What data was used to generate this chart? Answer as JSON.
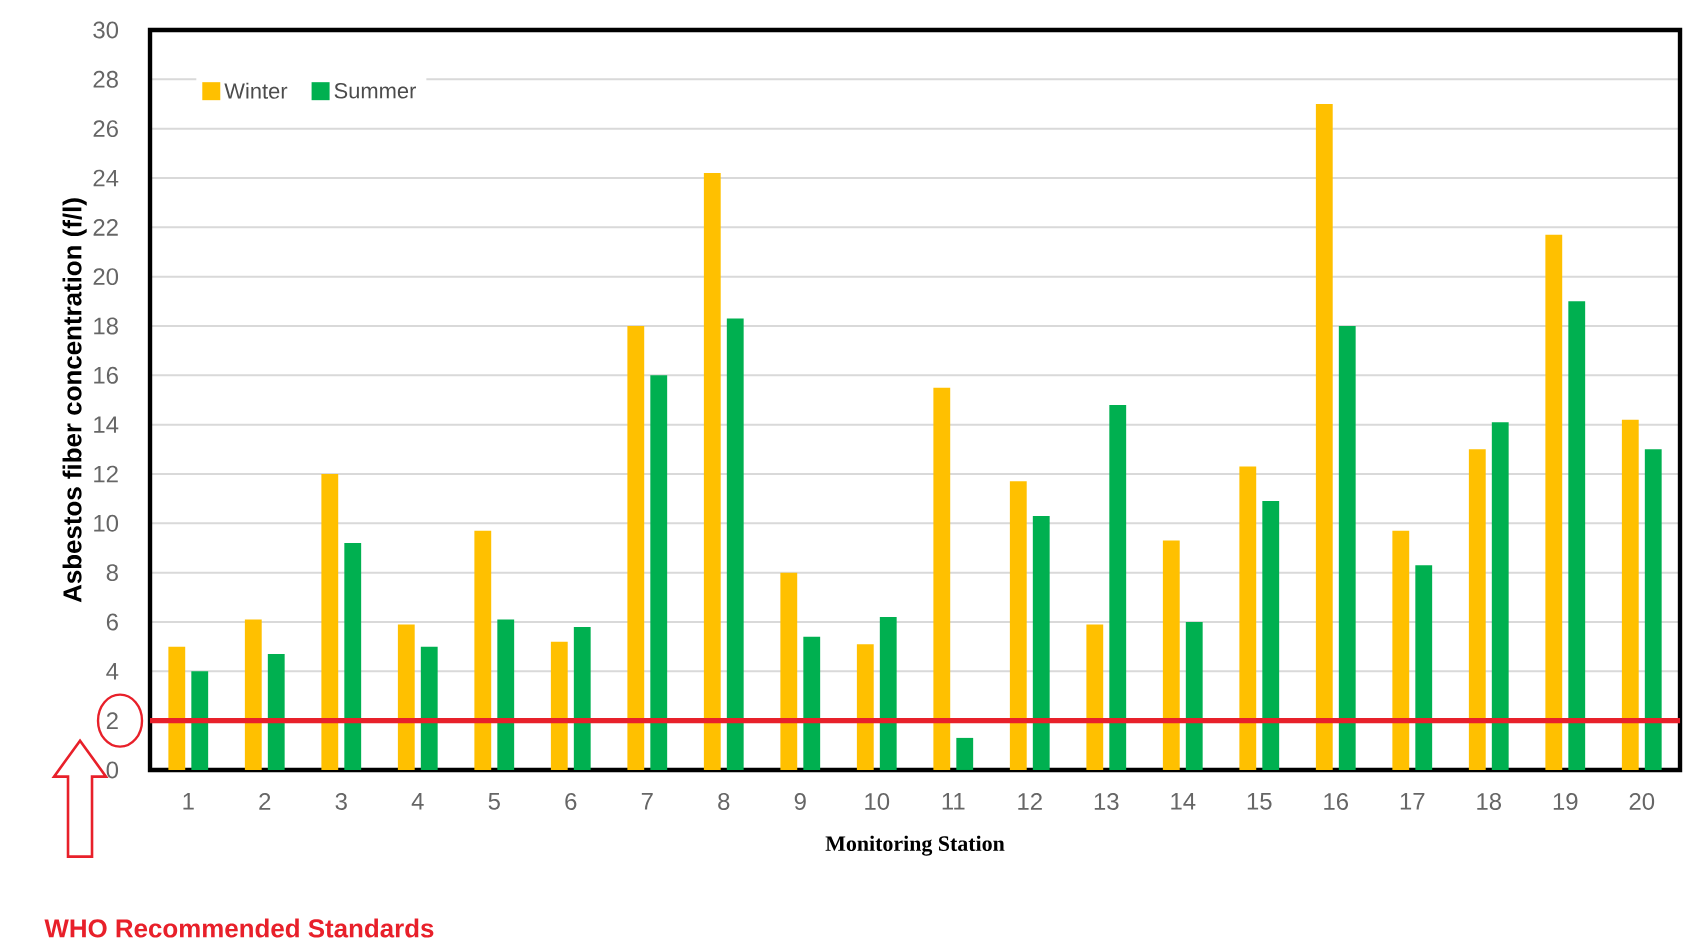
{
  "chart_data": {
    "type": "bar",
    "xlabel": "Monitoring Station",
    "ylabel": "Asbestos fiber concentration (f/l)",
    "categories": [
      "1",
      "2",
      "3",
      "4",
      "5",
      "6",
      "7",
      "8",
      "9",
      "10",
      "11",
      "12",
      "13",
      "14",
      "15",
      "16",
      "17",
      "18",
      "19",
      "20"
    ],
    "series": [
      {
        "name": "Winter",
        "color": "#ffc000",
        "values": [
          5.0,
          6.1,
          12.0,
          5.9,
          9.7,
          5.2,
          18.0,
          24.2,
          8.0,
          5.1,
          15.5,
          11.7,
          5.9,
          9.3,
          12.3,
          27.0,
          9.7,
          13.0,
          21.7,
          14.2
        ]
      },
      {
        "name": "Summer",
        "color": "#00b050",
        "values": [
          4.0,
          4.7,
          9.2,
          5.0,
          6.1,
          5.8,
          16.0,
          18.3,
          5.4,
          6.2,
          1.3,
          10.3,
          14.8,
          6.0,
          10.9,
          18.0,
          8.3,
          14.1,
          19.0,
          13.0
        ]
      }
    ],
    "ylim": [
      0,
      30
    ],
    "yticks": [
      0,
      2,
      4,
      6,
      8,
      10,
      12,
      14,
      16,
      18,
      20,
      22,
      24,
      26,
      28,
      30
    ],
    "grid": "y",
    "legend": "top left",
    "ref_lines": [
      {
        "axis": "y",
        "value": 2,
        "label": "WHO Recommended Standards",
        "color": "#e8202a"
      }
    ]
  }
}
